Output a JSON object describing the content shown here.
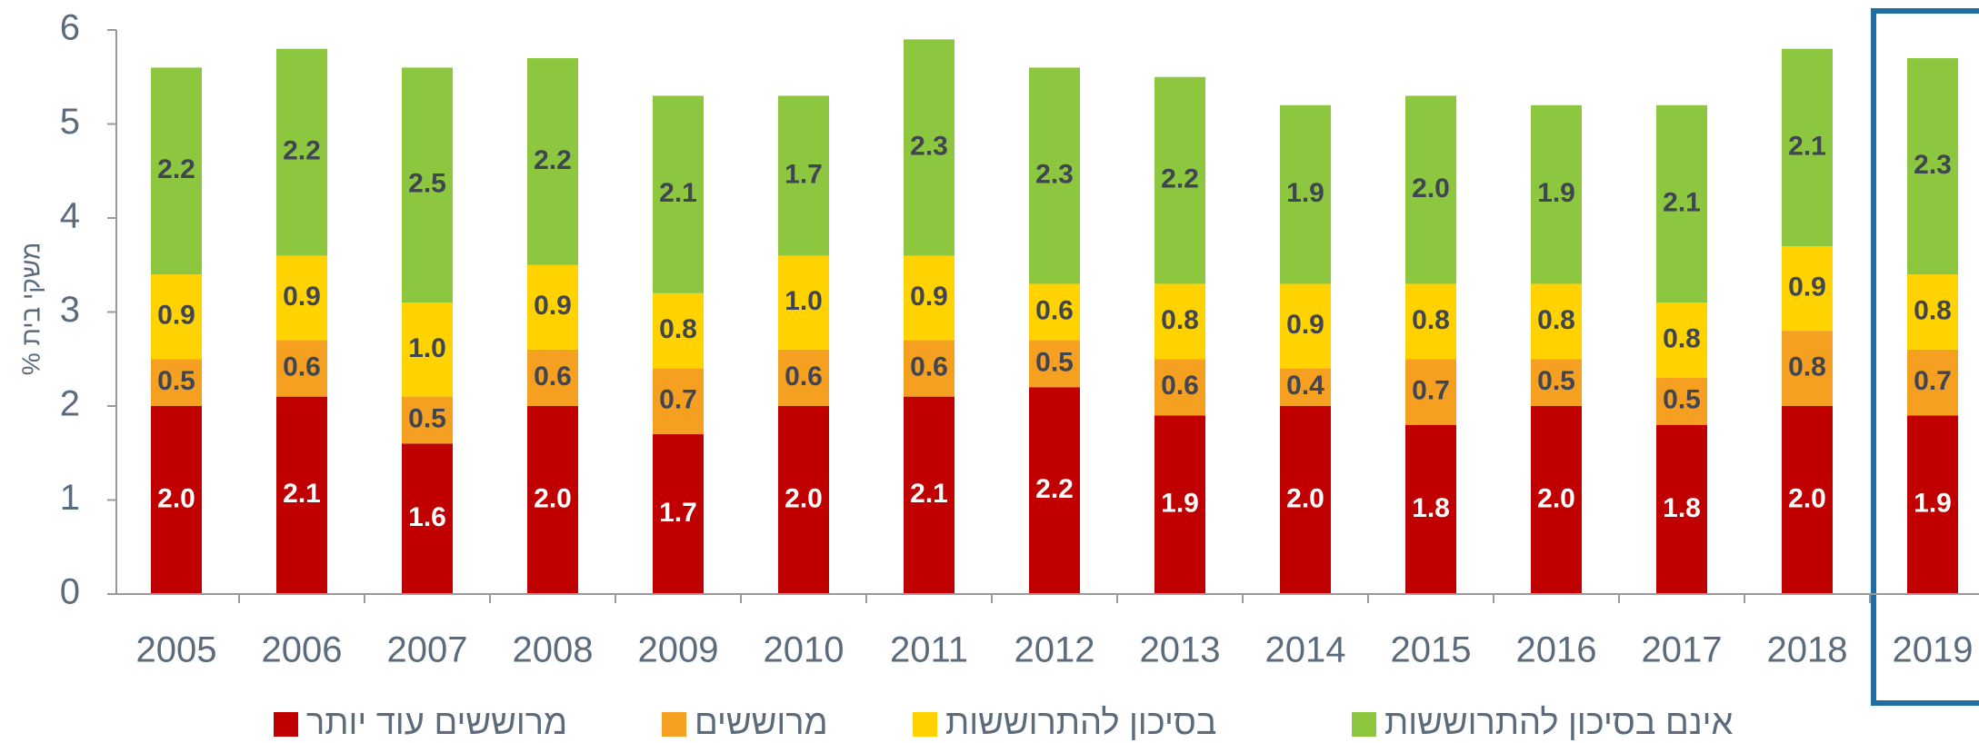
{
  "chart_data": {
    "type": "stacked_bar",
    "y_axis_label": "% משקי בית",
    "categories": [
      "2005",
      "2006",
      "2007",
      "2008",
      "2009",
      "2010",
      "2011",
      "2012",
      "2013",
      "2014",
      "2015",
      "2016",
      "2017",
      "2018",
      "2019"
    ],
    "series": [
      {
        "name": "מרוששים עוד יותר",
        "color": "#c00000",
        "values": [
          2.0,
          2.1,
          1.6,
          2.0,
          1.7,
          2.0,
          2.1,
          2.2,
          1.9,
          2.0,
          1.8,
          2.0,
          1.8,
          2.0,
          1.9
        ],
        "value_labels": [
          "2.0",
          "2.1",
          "1.6",
          "2.0",
          "1.7",
          "2.0",
          "2.1",
          "2.2",
          "1.9",
          "2.0",
          "1.8",
          "2.0",
          "1.8",
          "2.0",
          "1.9"
        ]
      },
      {
        "name": "מרוששים",
        "color": "#f5a020",
        "values": [
          0.5,
          0.6,
          0.5,
          0.6,
          0.7,
          0.6,
          0.6,
          0.5,
          0.6,
          0.4,
          0.7,
          0.5,
          0.5,
          0.8,
          0.7
        ],
        "value_labels": [
          "0.5",
          "0.6",
          "0.5",
          "0.6",
          "0.7",
          "0.6",
          "0.6",
          "0.5",
          "0.6",
          "0.4",
          "0.7",
          "0.5",
          "0.5",
          "0.8",
          "0.7"
        ]
      },
      {
        "name": "בסיכון להתרוששות",
        "color": "#ffd200",
        "values": [
          0.9,
          0.9,
          1.0,
          0.9,
          0.8,
          1.0,
          0.9,
          0.6,
          0.8,
          0.9,
          0.8,
          0.8,
          0.8,
          0.9,
          0.8
        ],
        "value_labels": [
          "0.9",
          "0.9",
          "1.0",
          "0.9",
          "0.8",
          "1.0",
          "0.9",
          "0.6",
          "0.8",
          "0.9",
          "0.8",
          "0.8",
          "0.8",
          "0.9",
          "0.8"
        ]
      },
      {
        "name": "אינם בסיכון להתרוששות",
        "color": "#8dc63f",
        "values": [
          2.2,
          2.2,
          2.5,
          2.2,
          2.1,
          1.7,
          2.3,
          2.3,
          2.2,
          1.9,
          2.0,
          1.9,
          2.1,
          2.1,
          2.3
        ],
        "value_labels": [
          "2.2",
          "2.2",
          "2.5",
          "2.2",
          "2.1",
          "1.7",
          "2.3",
          "2.3",
          "2.2",
          "1.9",
          "2.0",
          "1.9",
          "2.1",
          "2.1",
          "2.3"
        ]
      }
    ],
    "ylim": [
      0,
      6
    ],
    "yticks": [
      0,
      1,
      2,
      3,
      4,
      5,
      6
    ],
    "grid": false,
    "legend": "bottom"
  }
}
